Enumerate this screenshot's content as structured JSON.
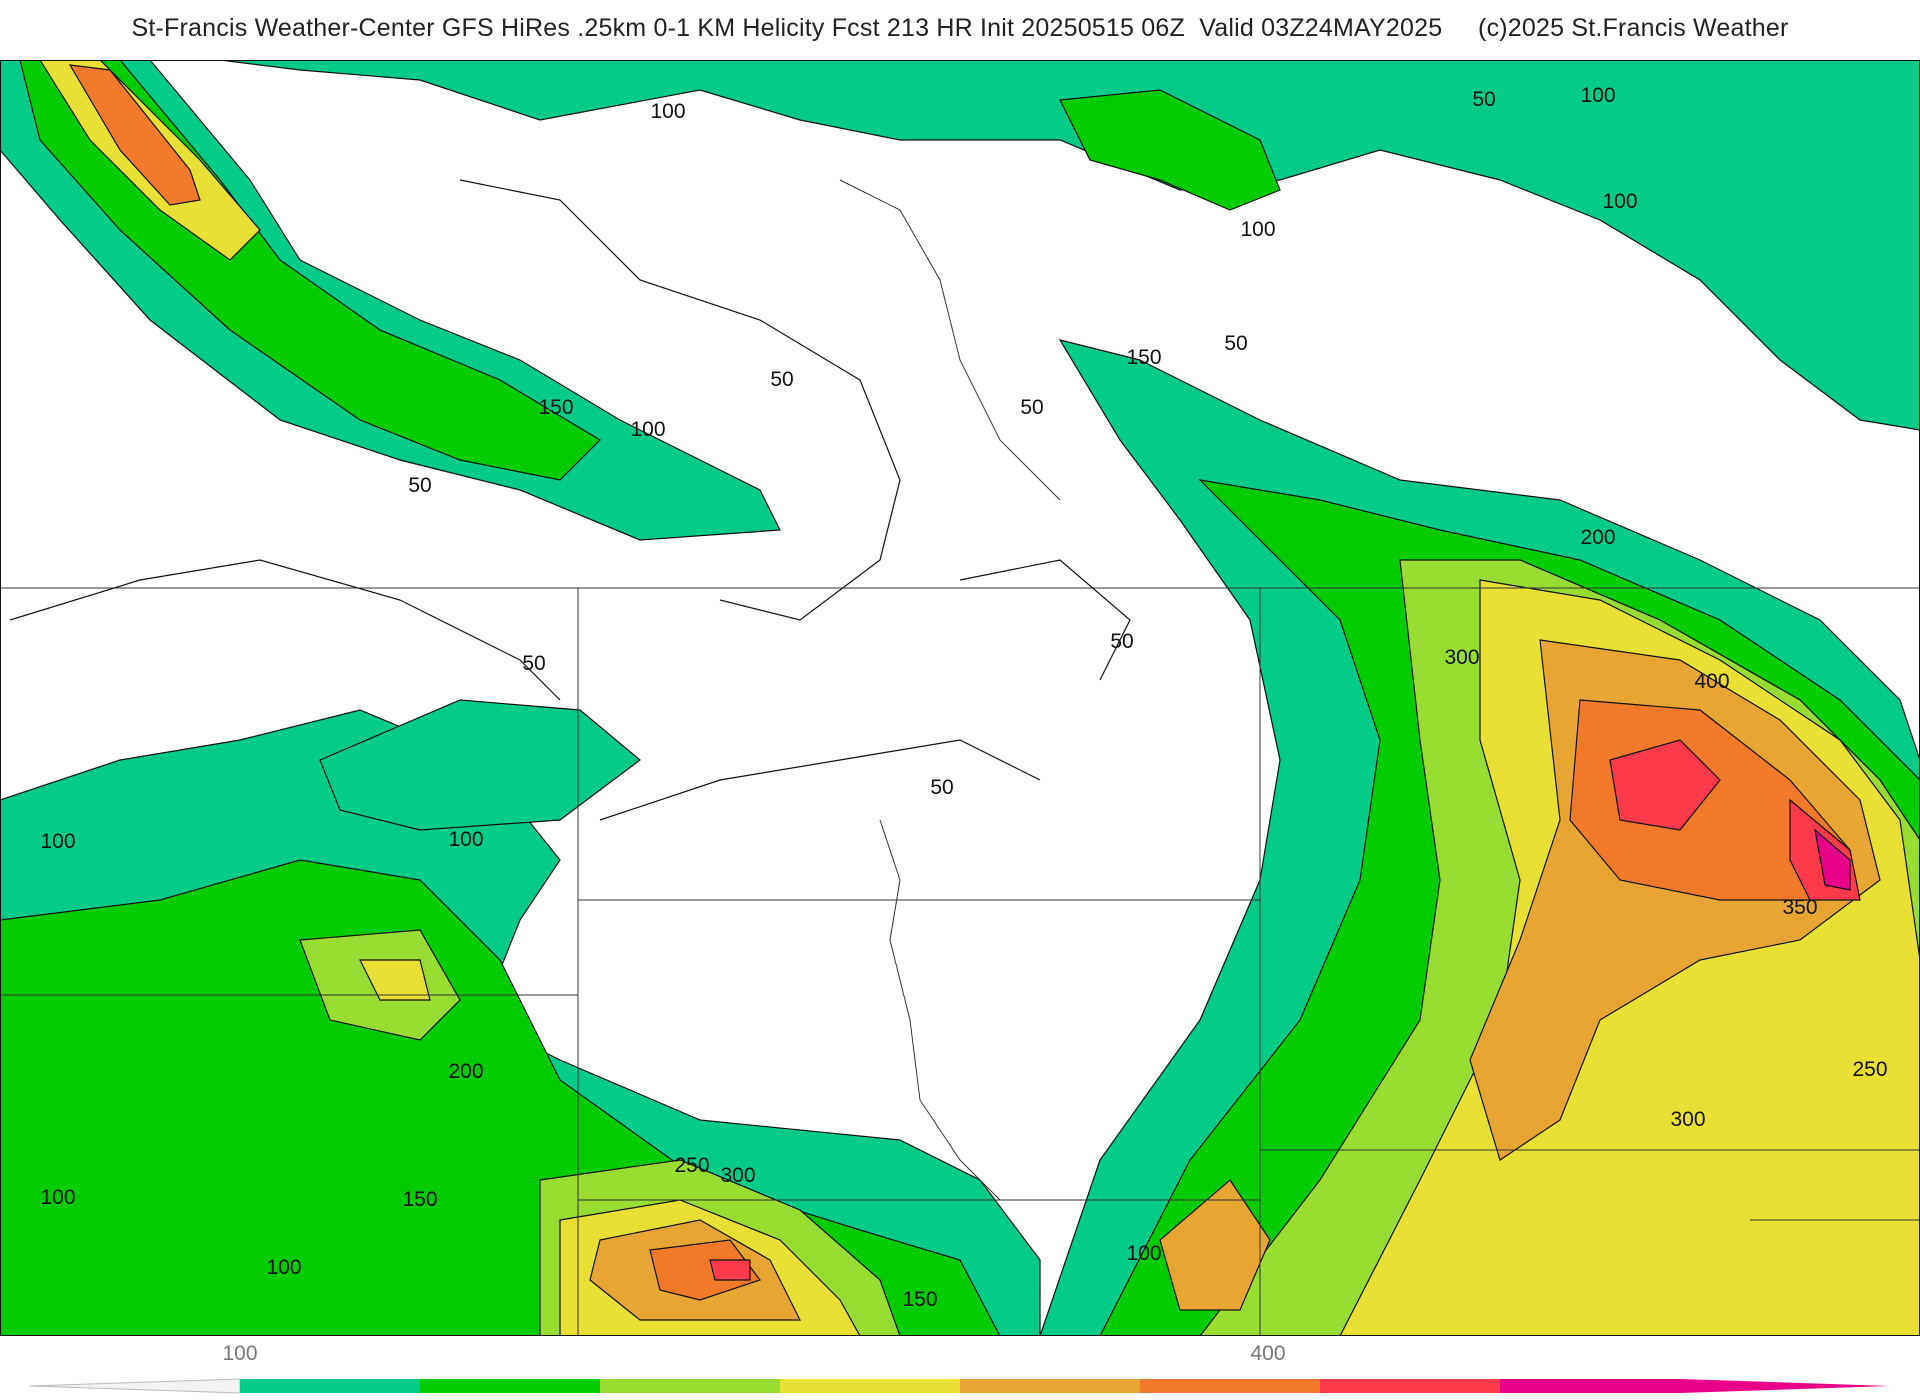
{
  "title": "St-Francis Weather-Center GFS HiRes .25km 0-1 KM Helicity Fcst 213 HR Init 20250515 06Z  Valid 03Z24MAY2025     (c)2025 St.Francis Weather",
  "map": {
    "field": "0-1 KM Helicity",
    "contour_labels": [
      "100",
      "50",
      "100",
      "100",
      "100",
      "150",
      "50",
      "150",
      "100",
      "50",
      "50",
      "50",
      "100",
      "50",
      "200",
      "50",
      "50",
      "300",
      "400",
      "50",
      "100",
      "100",
      "350",
      "200",
      "250",
      "250",
      "300",
      "300",
      "150",
      "100",
      "150",
      "100",
      "100"
    ]
  },
  "colorbar": {
    "tick_labels": [
      "100",
      "400"
    ],
    "colors": [
      "#00cc88",
      "#00cc00",
      "#99dd33",
      "#e8e033",
      "#e8a533",
      "#f07a2a",
      "#ff3a4a",
      "#e8008a"
    ]
  }
}
